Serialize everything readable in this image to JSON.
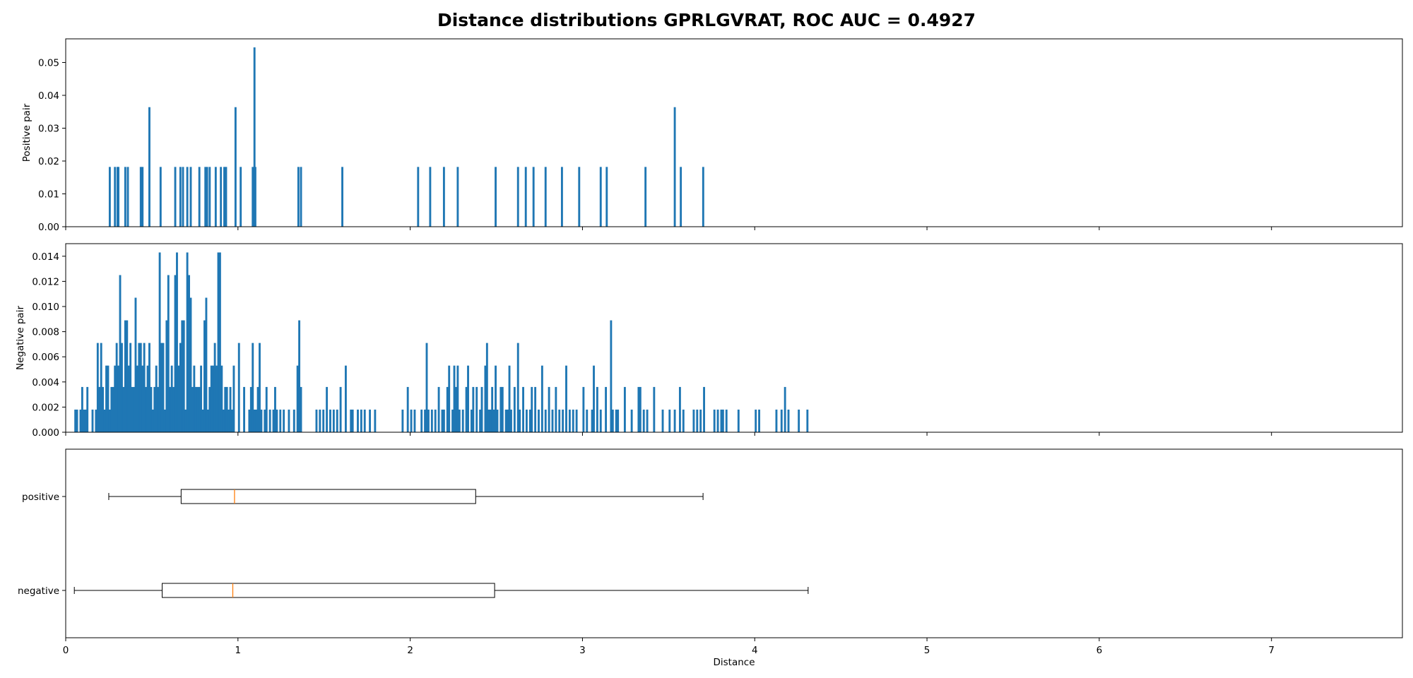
{
  "figure": {
    "title": "Distance distributions GPRLGVRAT, ROC AUC = 0.4927"
  },
  "chart_data": [
    {
      "type": "bar",
      "panel": "positive-histogram",
      "ylabel": "Positive pair",
      "xlim": [
        0,
        7.76
      ],
      "ylim": [
        0,
        0.0572
      ],
      "yticks": [
        "0.00",
        "0.01",
        "0.02",
        "0.03",
        "0.04",
        "0.05"
      ],
      "color": "#1f77b4",
      "bins": [
        [
          0.25,
          0.0182
        ],
        [
          0.28,
          0.0182
        ],
        [
          0.295,
          0.0182
        ],
        [
          0.3,
          0.0182
        ],
        [
          0.34,
          0.0182
        ],
        [
          0.355,
          0.0182
        ],
        [
          0.43,
          0.0182
        ],
        [
          0.44,
          0.0182
        ],
        [
          0.48,
          0.0364
        ],
        [
          0.545,
          0.0182
        ],
        [
          0.63,
          0.0182
        ],
        [
          0.66,
          0.0182
        ],
        [
          0.675,
          0.0182
        ],
        [
          0.7,
          0.0182
        ],
        [
          0.72,
          0.0182
        ],
        [
          0.77,
          0.0182
        ],
        [
          0.805,
          0.0182
        ],
        [
          0.815,
          0.0182
        ],
        [
          0.83,
          0.0182
        ],
        [
          0.865,
          0.0182
        ],
        [
          0.895,
          0.0182
        ],
        [
          0.915,
          0.0182
        ],
        [
          0.925,
          0.0182
        ],
        [
          0.98,
          0.0364
        ],
        [
          1.01,
          0.0182
        ],
        [
          1.08,
          0.0182
        ],
        [
          1.09,
          0.0546
        ],
        [
          1.095,
          0.0182
        ],
        [
          1.345,
          0.0182
        ],
        [
          1.36,
          0.0182
        ],
        [
          1.6,
          0.0182
        ],
        [
          2.04,
          0.0182
        ],
        [
          2.11,
          0.0182
        ],
        [
          2.19,
          0.0182
        ],
        [
          2.27,
          0.0182
        ],
        [
          2.49,
          0.0182
        ],
        [
          2.62,
          0.0182
        ],
        [
          2.665,
          0.0182
        ],
        [
          2.71,
          0.0182
        ],
        [
          2.78,
          0.0182
        ],
        [
          2.875,
          0.0182
        ],
        [
          2.975,
          0.0182
        ],
        [
          3.1,
          0.0182
        ],
        [
          3.135,
          0.0182
        ],
        [
          3.36,
          0.0182
        ],
        [
          3.53,
          0.0364
        ],
        [
          3.565,
          0.0182
        ],
        [
          3.695,
          0.0182
        ]
      ]
    },
    {
      "type": "bar",
      "panel": "negative-histogram",
      "ylabel": "Negative pair",
      "xlim": [
        0,
        7.76
      ],
      "ylim": [
        0,
        0.015
      ],
      "yticks": [
        "0.000",
        "0.002",
        "0.004",
        "0.006",
        "0.008",
        "0.010",
        "0.012",
        "0.014"
      ],
      "color": "#1f77b4",
      "bins": [
        [
          0.05,
          0.0018
        ],
        [
          0.06,
          0.0018
        ],
        [
          0.08,
          0.0018
        ],
        [
          0.09,
          0.0036
        ],
        [
          0.1,
          0.0018
        ],
        [
          0.11,
          0.0018
        ],
        [
          0.12,
          0.0036
        ],
        [
          0.15,
          0.0018
        ],
        [
          0.17,
          0.0018
        ],
        [
          0.18,
          0.0071
        ],
        [
          0.19,
          0.0036
        ],
        [
          0.2,
          0.0071
        ],
        [
          0.21,
          0.0036
        ],
        [
          0.22,
          0.0018
        ],
        [
          0.23,
          0.0053
        ],
        [
          0.24,
          0.0053
        ],
        [
          0.25,
          0.0018
        ],
        [
          0.26,
          0.0036
        ],
        [
          0.27,
          0.0036
        ],
        [
          0.28,
          0.0053
        ],
        [
          0.29,
          0.0071
        ],
        [
          0.3,
          0.0053
        ],
        [
          0.31,
          0.0125
        ],
        [
          0.32,
          0.0071
        ],
        [
          0.33,
          0.0036
        ],
        [
          0.34,
          0.0089
        ],
        [
          0.35,
          0.0089
        ],
        [
          0.36,
          0.0053
        ],
        [
          0.37,
          0.0071
        ],
        [
          0.38,
          0.0036
        ],
        [
          0.39,
          0.0036
        ],
        [
          0.4,
          0.0107
        ],
        [
          0.41,
          0.0053
        ],
        [
          0.42,
          0.0071
        ],
        [
          0.43,
          0.0071
        ],
        [
          0.44,
          0.0053
        ],
        [
          0.45,
          0.0071
        ],
        [
          0.46,
          0.0036
        ],
        [
          0.47,
          0.0053
        ],
        [
          0.48,
          0.0071
        ],
        [
          0.49,
          0.0036
        ],
        [
          0.5,
          0.0018
        ],
        [
          0.51,
          0.0036
        ],
        [
          0.52,
          0.0053
        ],
        [
          0.53,
          0.0036
        ],
        [
          0.54,
          0.0143
        ],
        [
          0.55,
          0.0071
        ],
        [
          0.56,
          0.0071
        ],
        [
          0.57,
          0.0018
        ],
        [
          0.58,
          0.0089
        ],
        [
          0.59,
          0.0125
        ],
        [
          0.6,
          0.0036
        ],
        [
          0.61,
          0.0053
        ],
        [
          0.62,
          0.0036
        ],
        [
          0.63,
          0.0125
        ],
        [
          0.64,
          0.0143
        ],
        [
          0.65,
          0.0053
        ],
        [
          0.66,
          0.0071
        ],
        [
          0.67,
          0.0089
        ],
        [
          0.68,
          0.0089
        ],
        [
          0.69,
          0.0018
        ],
        [
          0.7,
          0.0143
        ],
        [
          0.71,
          0.0125
        ],
        [
          0.72,
          0.0107
        ],
        [
          0.73,
          0.0036
        ],
        [
          0.74,
          0.0053
        ],
        [
          0.75,
          0.0036
        ],
        [
          0.76,
          0.0036
        ],
        [
          0.77,
          0.0036
        ],
        [
          0.78,
          0.0053
        ],
        [
          0.79,
          0.0018
        ],
        [
          0.8,
          0.0089
        ],
        [
          0.81,
          0.0107
        ],
        [
          0.82,
          0.0018
        ],
        [
          0.83,
          0.0036
        ],
        [
          0.84,
          0.0053
        ],
        [
          0.85,
          0.0053
        ],
        [
          0.86,
          0.0071
        ],
        [
          0.87,
          0.0053
        ],
        [
          0.88,
          0.0143
        ],
        [
          0.89,
          0.0143
        ],
        [
          0.9,
          0.0053
        ],
        [
          0.91,
          0.0018
        ],
        [
          0.92,
          0.0036
        ],
        [
          0.93,
          0.0036
        ],
        [
          0.94,
          0.0018
        ],
        [
          0.95,
          0.0036
        ],
        [
          0.96,
          0.0018
        ],
        [
          0.97,
          0.0053
        ],
        [
          1.0,
          0.0071
        ],
        [
          1.03,
          0.0036
        ],
        [
          1.06,
          0.0018
        ],
        [
          1.07,
          0.0036
        ],
        [
          1.08,
          0.0071
        ],
        [
          1.09,
          0.0018
        ],
        [
          1.1,
          0.0018
        ],
        [
          1.11,
          0.0036
        ],
        [
          1.12,
          0.0071
        ],
        [
          1.13,
          0.0018
        ],
        [
          1.15,
          0.0018
        ],
        [
          1.16,
          0.0036
        ],
        [
          1.18,
          0.0018
        ],
        [
          1.2,
          0.0018
        ],
        [
          1.21,
          0.0036
        ],
        [
          1.22,
          0.0018
        ],
        [
          1.24,
          0.0018
        ],
        [
          1.26,
          0.0018
        ],
        [
          1.29,
          0.0018
        ],
        [
          1.32,
          0.0018
        ],
        [
          1.34,
          0.0053
        ],
        [
          1.35,
          0.0089
        ],
        [
          1.36,
          0.0036
        ],
        [
          1.45,
          0.0018
        ],
        [
          1.47,
          0.0018
        ],
        [
          1.49,
          0.0018
        ],
        [
          1.51,
          0.0036
        ],
        [
          1.53,
          0.0018
        ],
        [
          1.55,
          0.0018
        ],
        [
          1.57,
          0.0018
        ],
        [
          1.59,
          0.0036
        ],
        [
          1.62,
          0.0053
        ],
        [
          1.65,
          0.0018
        ],
        [
          1.66,
          0.0018
        ],
        [
          1.69,
          0.0018
        ],
        [
          1.71,
          0.0018
        ],
        [
          1.73,
          0.0018
        ],
        [
          1.76,
          0.0018
        ],
        [
          1.79,
          0.0018
        ],
        [
          1.95,
          0.0018
        ],
        [
          1.98,
          0.0036
        ],
        [
          2.0,
          0.0018
        ],
        [
          2.02,
          0.0018
        ],
        [
          2.06,
          0.0018
        ],
        [
          2.08,
          0.0018
        ],
        [
          2.09,
          0.0071
        ],
        [
          2.1,
          0.0018
        ],
        [
          2.12,
          0.0018
        ],
        [
          2.14,
          0.0018
        ],
        [
          2.16,
          0.0036
        ],
        [
          2.18,
          0.0018
        ],
        [
          2.19,
          0.0018
        ],
        [
          2.21,
          0.0036
        ],
        [
          2.22,
          0.0053
        ],
        [
          2.24,
          0.0018
        ],
        [
          2.25,
          0.0053
        ],
        [
          2.26,
          0.0036
        ],
        [
          2.27,
          0.0053
        ],
        [
          2.28,
          0.0018
        ],
        [
          2.3,
          0.0018
        ],
        [
          2.32,
          0.0036
        ],
        [
          2.33,
          0.0053
        ],
        [
          2.35,
          0.0018
        ],
        [
          2.36,
          0.0036
        ],
        [
          2.38,
          0.0036
        ],
        [
          2.4,
          0.0018
        ],
        [
          2.41,
          0.0036
        ],
        [
          2.43,
          0.0053
        ],
        [
          2.44,
          0.0071
        ],
        [
          2.45,
          0.0018
        ],
        [
          2.46,
          0.0018
        ],
        [
          2.47,
          0.0036
        ],
        [
          2.48,
          0.0018
        ],
        [
          2.49,
          0.0053
        ],
        [
          2.5,
          0.0018
        ],
        [
          2.52,
          0.0036
        ],
        [
          2.53,
          0.0036
        ],
        [
          2.55,
          0.0018
        ],
        [
          2.56,
          0.0018
        ],
        [
          2.57,
          0.0053
        ],
        [
          2.58,
          0.0018
        ],
        [
          2.6,
          0.0036
        ],
        [
          2.62,
          0.0071
        ],
        [
          2.63,
          0.0018
        ],
        [
          2.65,
          0.0036
        ],
        [
          2.67,
          0.0018
        ],
        [
          2.69,
          0.0018
        ],
        [
          2.7,
          0.0036
        ],
        [
          2.72,
          0.0036
        ],
        [
          2.74,
          0.0018
        ],
        [
          2.76,
          0.0053
        ],
        [
          2.78,
          0.0018
        ],
        [
          2.8,
          0.0036
        ],
        [
          2.82,
          0.0018
        ],
        [
          2.84,
          0.0036
        ],
        [
          2.86,
          0.0018
        ],
        [
          2.88,
          0.0018
        ],
        [
          2.9,
          0.0053
        ],
        [
          2.92,
          0.0018
        ],
        [
          2.94,
          0.0018
        ],
        [
          2.96,
          0.0018
        ],
        [
          3.0,
          0.0036
        ],
        [
          3.02,
          0.0018
        ],
        [
          3.05,
          0.0018
        ],
        [
          3.06,
          0.0053
        ],
        [
          3.08,
          0.0036
        ],
        [
          3.1,
          0.0018
        ],
        [
          3.13,
          0.0036
        ],
        [
          3.16,
          0.0089
        ],
        [
          3.17,
          0.0018
        ],
        [
          3.19,
          0.0018
        ],
        [
          3.2,
          0.0018
        ],
        [
          3.24,
          0.0036
        ],
        [
          3.28,
          0.0018
        ],
        [
          3.32,
          0.0036
        ],
        [
          3.33,
          0.0036
        ],
        [
          3.35,
          0.0018
        ],
        [
          3.37,
          0.0018
        ],
        [
          3.41,
          0.0036
        ],
        [
          3.46,
          0.0018
        ],
        [
          3.5,
          0.0018
        ],
        [
          3.53,
          0.0018
        ],
        [
          3.56,
          0.0036
        ],
        [
          3.58,
          0.0018
        ],
        [
          3.64,
          0.0018
        ],
        [
          3.66,
          0.0018
        ],
        [
          3.68,
          0.0018
        ],
        [
          3.7,
          0.0036
        ],
        [
          3.76,
          0.0018
        ],
        [
          3.78,
          0.0018
        ],
        [
          3.8,
          0.0018
        ],
        [
          3.81,
          0.0018
        ],
        [
          3.83,
          0.0018
        ],
        [
          3.9,
          0.0018
        ],
        [
          4.0,
          0.0018
        ],
        [
          4.02,
          0.0018
        ],
        [
          4.12,
          0.0018
        ],
        [
          4.15,
          0.0018
        ],
        [
          4.17,
          0.0036
        ],
        [
          4.19,
          0.0018
        ],
        [
          4.25,
          0.0018
        ],
        [
          4.3,
          0.0018
        ]
      ]
    },
    {
      "type": "boxplot",
      "panel": "boxplot",
      "xlabel": "Distance",
      "xlim": [
        0,
        7.76
      ],
      "xticks": [
        "0",
        "1",
        "2",
        "3",
        "4",
        "5",
        "6",
        "7"
      ],
      "median_color": "#ff7f0e",
      "boxes": [
        {
          "name": "positive",
          "whisker_low": 0.25,
          "q1": 0.67,
          "median": 0.98,
          "q3": 2.38,
          "whisker_high": 3.7
        },
        {
          "name": "negative",
          "whisker_low": 0.05,
          "q1": 0.56,
          "median": 0.97,
          "q3": 2.49,
          "whisker_high": 4.31
        }
      ]
    }
  ]
}
